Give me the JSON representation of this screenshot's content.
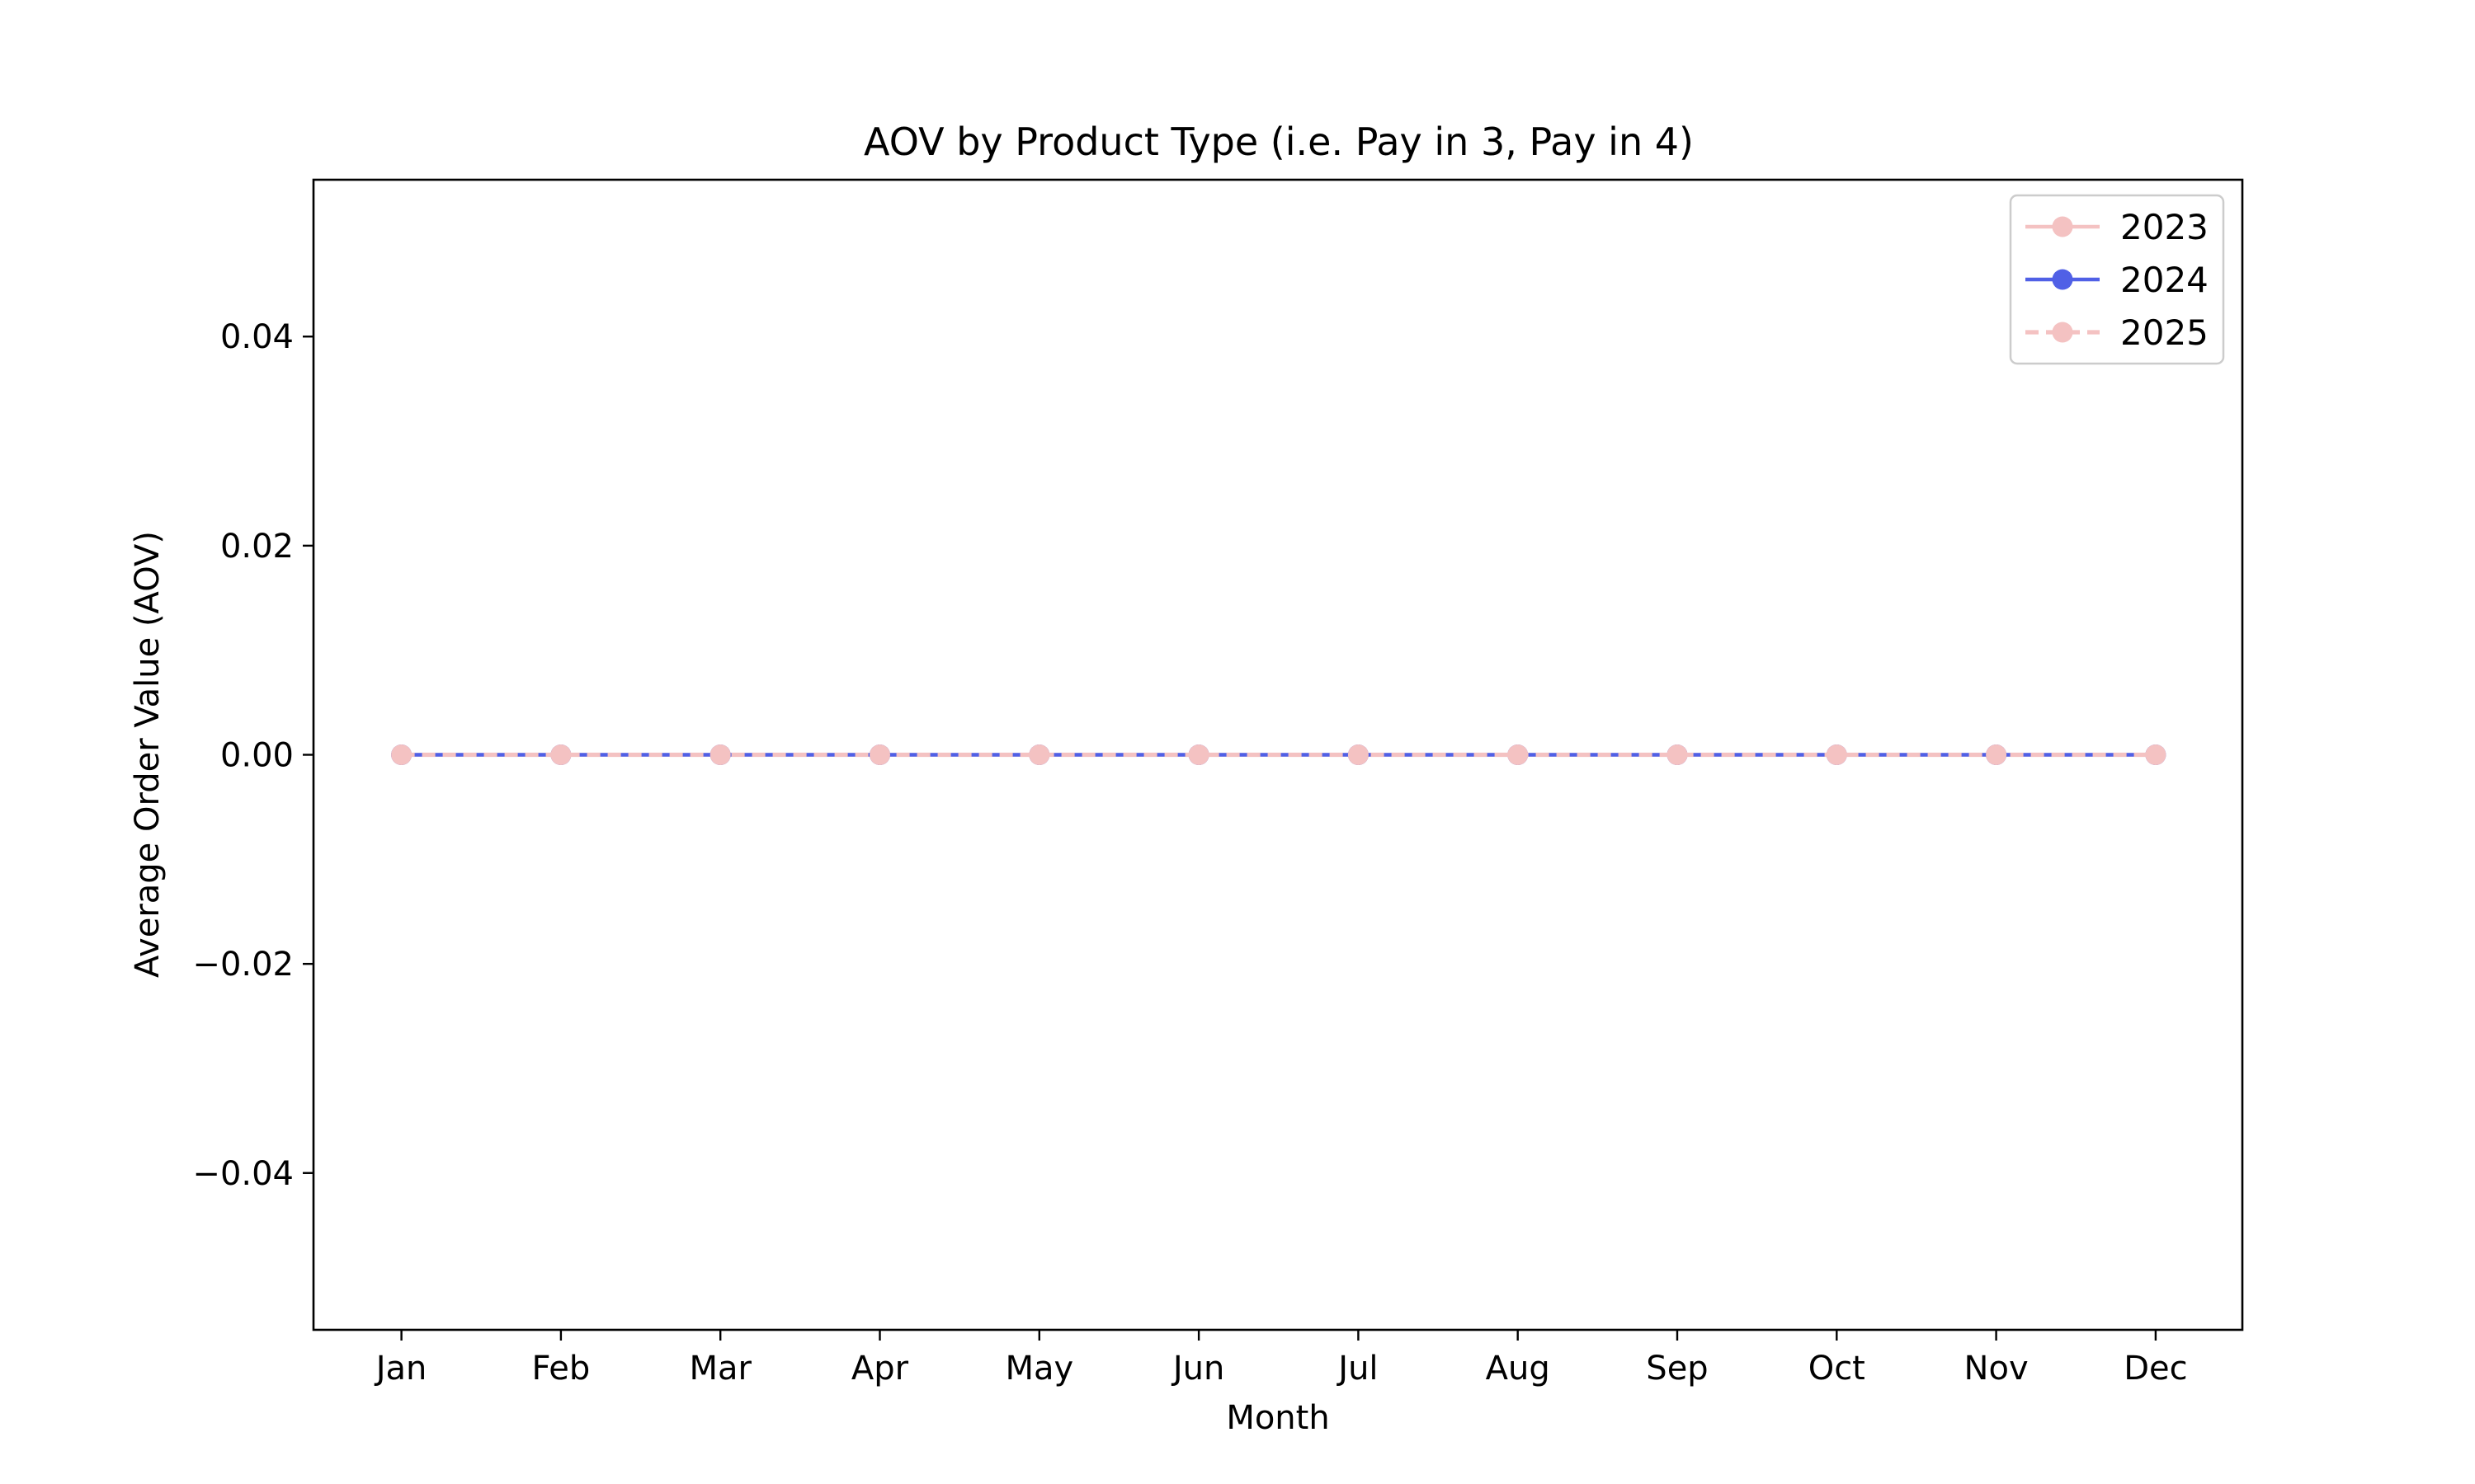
{
  "chart_data": {
    "type": "line",
    "title": "AOV by Product Type (i.e. Pay in 3, Pay in 4)",
    "xlabel": "Month",
    "ylabel": "Average Order Value (AOV)",
    "categories": [
      "Jan",
      "Feb",
      "Mar",
      "Apr",
      "May",
      "Jun",
      "Jul",
      "Aug",
      "Sep",
      "Oct",
      "Nov",
      "Dec"
    ],
    "ylim": [
      -0.055,
      0.055
    ],
    "yticks": [
      -0.04,
      -0.02,
      0.0,
      0.02,
      0.04
    ],
    "ytick_labels": [
      "−0.04",
      "−0.02",
      "0.00",
      "0.02",
      "0.04"
    ],
    "grid": false,
    "legend_position": "top-right",
    "series": [
      {
        "name": "2023",
        "values": [
          0,
          0,
          0,
          0,
          0,
          0,
          0,
          0,
          0,
          0,
          0,
          0
        ],
        "color": "#f4c2c2",
        "line_style": "solid",
        "marker": "circle"
      },
      {
        "name": "2024",
        "values": [
          0,
          0,
          0,
          0,
          0,
          0,
          0,
          0,
          0,
          0,
          0,
          0
        ],
        "color": "#5060e6",
        "line_style": "solid",
        "marker": "circle"
      },
      {
        "name": "2025",
        "values": [
          0,
          0,
          0,
          0,
          0,
          0,
          0,
          0,
          0,
          0,
          0,
          0
        ],
        "color": "#f4c2c2",
        "line_style": "dashed",
        "marker": "circle"
      }
    ]
  }
}
